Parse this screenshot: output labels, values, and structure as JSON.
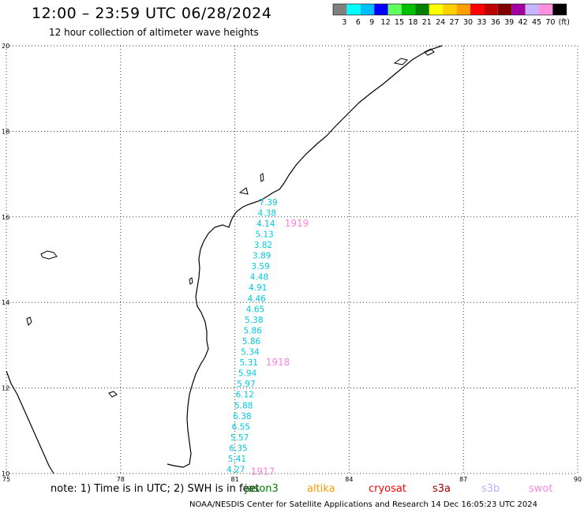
{
  "title": "12:00 – 23:59 UTC 06/28/2024",
  "subtitle": "12 hour collection of altimeter wave heights",
  "legend": {
    "colors": [
      "#808080",
      "#00ffff",
      "#00bfff",
      "#0000ff",
      "#60ff60",
      "#00c000",
      "#008000",
      "#ffff00",
      "#ffd000",
      "#ffa000",
      "#ff0000",
      "#c00000",
      "#800000",
      "#a000a0",
      "#c8b4ff",
      "#ff90e0",
      "#000000"
    ],
    "labels": [
      "3",
      "6",
      "9",
      "12",
      "15",
      "18",
      "21",
      "24",
      "27",
      "30",
      "33",
      "36",
      "39",
      "42",
      "45",
      "70",
      "(ft)"
    ]
  },
  "map_labels": {
    "lat_ticks": [
      "20",
      "18",
      "16",
      "14",
      "12",
      "10"
    ],
    "lon_ticks": [
      "75",
      "78",
      "81",
      "84",
      "87",
      "90"
    ]
  },
  "swh_points": [
    {
      "lat": 16.35,
      "text": "7.39"
    },
    {
      "lat": 16.1,
      "text": "4.38"
    },
    {
      "lat": 15.85,
      "text": "4.14"
    },
    {
      "lat": 15.6,
      "text": "5.13"
    },
    {
      "lat": 15.35,
      "text": "3.82"
    },
    {
      "lat": 15.1,
      "text": "3.89"
    },
    {
      "lat": 14.85,
      "text": "3.59"
    },
    {
      "lat": 14.6,
      "text": "4.48"
    },
    {
      "lat": 14.35,
      "text": "4.91"
    },
    {
      "lat": 14.1,
      "text": "4.46"
    },
    {
      "lat": 13.85,
      "text": "4.65"
    },
    {
      "lat": 13.6,
      "text": "5.38"
    },
    {
      "lat": 13.35,
      "text": "5.86"
    },
    {
      "lat": 13.1,
      "text": "5.86"
    },
    {
      "lat": 12.85,
      "text": "5.34"
    },
    {
      "lat": 12.6,
      "text": "5.31"
    },
    {
      "lat": 12.35,
      "text": "5.94"
    },
    {
      "lat": 12.1,
      "text": "5.97"
    },
    {
      "lat": 11.85,
      "text": "6.12"
    },
    {
      "lat": 11.6,
      "text": "5.88"
    },
    {
      "lat": 11.35,
      "text": "6.38"
    },
    {
      "lat": 11.1,
      "text": "6.55"
    },
    {
      "lat": 10.85,
      "text": "5.57"
    },
    {
      "lat": 10.6,
      "text": "6.35"
    },
    {
      "lat": 10.35,
      "text": "5.41"
    },
    {
      "lat": 10.1,
      "text": "4.27"
    }
  ],
  "time_labels": [
    {
      "text": "1919",
      "lat": 15.85
    },
    {
      "text": "1918",
      "lat": 12.6
    },
    {
      "text": "1917",
      "lat": 10.05
    }
  ],
  "note": "note:  1) Time is in UTC; 2) SWH is in feet",
  "satellites": [
    {
      "name": "jason3",
      "color": "#008000"
    },
    {
      "name": "altika",
      "color": "#ff9900"
    },
    {
      "name": "cryosat",
      "color": "#ff0000"
    },
    {
      "name": "s3a",
      "color": "#a00000"
    },
    {
      "name": "s3b",
      "color": "#c0b0ff"
    },
    {
      "name": "swot",
      "color": "#ff88dd"
    }
  ],
  "credit": "NOAA/NESDIS Center for Satellite Applications and Research   14 Dec 16:05:23 UTC 2024",
  "colors": {
    "swh_text": "#00c8e0",
    "time_text": "#ff80e0"
  }
}
